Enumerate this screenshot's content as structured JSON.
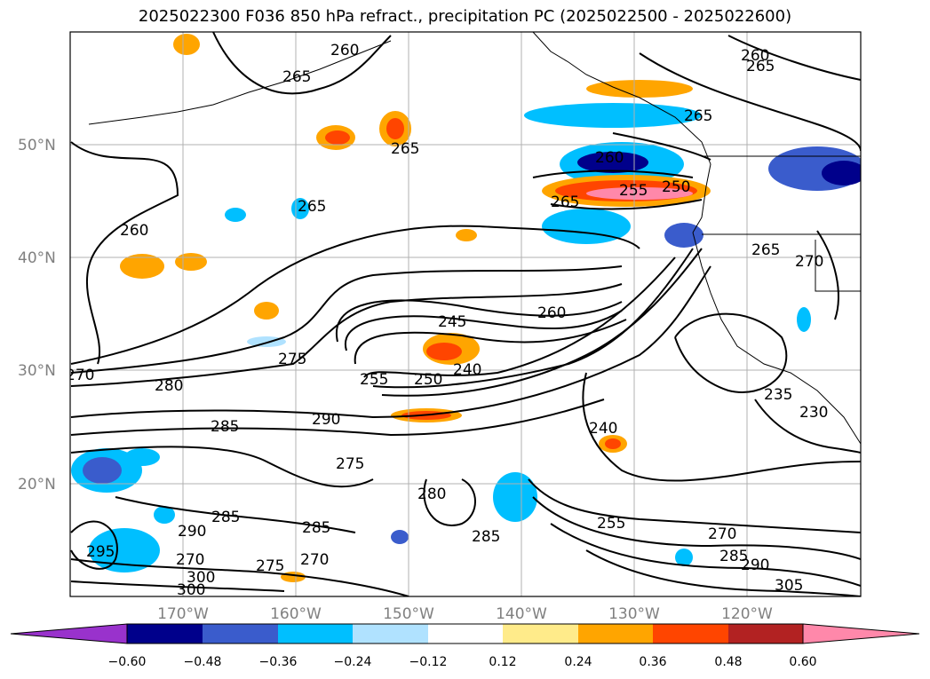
{
  "title": "2025022300 F036 850 hPa refract., precipitation PC (2025022500 - 2025022600)",
  "map": {
    "lat_labels": [
      "50°N",
      "40°N",
      "30°N",
      "20°N"
    ],
    "lon_labels": [
      "170°W",
      "160°W",
      "150°W",
      "140°W",
      "130°W",
      "120°W"
    ],
    "contour_labels": [
      "260",
      "265",
      "265",
      "265",
      "265",
      "265",
      "260",
      "260",
      "255",
      "250",
      "265",
      "260",
      "245",
      "260",
      "275",
      "270",
      "280",
      "255",
      "250",
      "240",
      "290",
      "285",
      "275",
      "285",
      "270",
      "240",
      "255",
      "285",
      "285",
      "290",
      "270",
      "280",
      "270",
      "285",
      "290",
      "305",
      "300",
      "295",
      "300",
      "275",
      "265",
      "235",
      "230",
      "270"
    ]
  },
  "colorbar": {
    "ticks": [
      "−0.60",
      "−0.48",
      "−0.36",
      "−0.24",
      "−0.12",
      "0.12",
      "0.24",
      "0.36",
      "0.48",
      "0.60"
    ],
    "colors": [
      "#9932cc",
      "#00008b",
      "#3a5ccc",
      "#00bfff",
      "#b0e2ff",
      "#ffffff",
      "#ffeb8a",
      "#ffa500",
      "#ff4500",
      "#b22222",
      "#ff88aa"
    ]
  }
}
